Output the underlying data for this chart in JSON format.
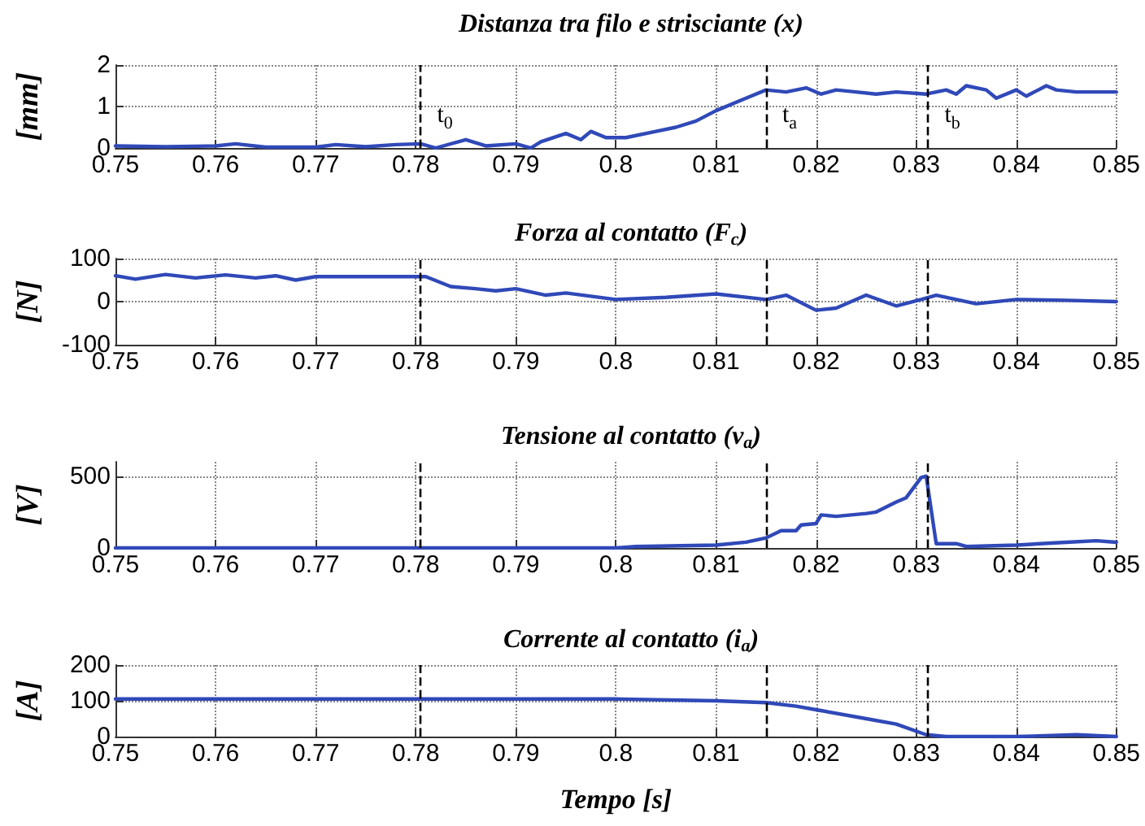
{
  "chart_data": [
    {
      "type": "line",
      "title": "Distanza tra filo e strisciante (x)",
      "ylabel": "[mm]",
      "grid": true,
      "marker": "none",
      "line_style": "solid",
      "xlim": [
        0.75,
        0.85
      ],
      "xticks": [
        0.75,
        0.76,
        0.77,
        0.78,
        0.79,
        0.8,
        0.81,
        0.82,
        0.83,
        0.84,
        0.85
      ],
      "ylim": [
        0,
        2
      ],
      "yticks": [
        0,
        1,
        2
      ],
      "x": [
        0.75,
        0.755,
        0.76,
        0.762,
        0.765,
        0.77,
        0.772,
        0.775,
        0.778,
        0.7805,
        0.782,
        0.785,
        0.787,
        0.79,
        0.7915,
        0.7925,
        0.795,
        0.7965,
        0.7975,
        0.799,
        0.801,
        0.804,
        0.806,
        0.808,
        0.81,
        0.813,
        0.815,
        0.817,
        0.819,
        0.8205,
        0.822,
        0.824,
        0.826,
        0.828,
        0.831,
        0.833,
        0.834,
        0.835,
        0.837,
        0.838,
        0.84,
        0.841,
        0.843,
        0.844,
        0.846,
        0.85
      ],
      "series": [
        {
          "color": "#3049b8",
          "values": [
            0.05,
            0.03,
            0.05,
            0.1,
            0.02,
            0.02,
            0.08,
            0.03,
            0.08,
            0.1,
            0,
            0.2,
            0.05,
            0.1,
            0,
            0.15,
            0.35,
            0.2,
            0.4,
            0.25,
            0.25,
            0.4,
            0.5,
            0.65,
            0.9,
            1.2,
            1.4,
            1.35,
            1.45,
            1.3,
            1.4,
            1.35,
            1.3,
            1.35,
            1.3,
            1.4,
            1.3,
            1.5,
            1.4,
            1.2,
            1.4,
            1.25,
            1.5,
            1.4,
            1.35,
            1.35
          ]
        }
      ],
      "ref_lines": [
        {
          "axis": "x",
          "value": 0.7805,
          "label": "t$_{0}$",
          "color": "#000000",
          "line_style": "dashed"
        },
        {
          "axis": "x",
          "value": 0.815,
          "label": "t$_{a}$",
          "color": "#000000",
          "line_style": "dashed"
        },
        {
          "axis": "x",
          "value": 0.8312,
          "label": "t$_{b}$",
          "color": "#000000",
          "line_style": "dashed"
        }
      ]
    },
    {
      "type": "line",
      "title": "Forza al contatto (F$_{c}$)",
      "ylabel": "[N]",
      "grid": true,
      "marker": "none",
      "line_style": "solid",
      "xlim": [
        0.75,
        0.85
      ],
      "xticks": [
        0.75,
        0.76,
        0.77,
        0.78,
        0.79,
        0.8,
        0.81,
        0.82,
        0.83,
        0.84,
        0.85
      ],
      "ylim": [
        -100,
        100
      ],
      "yticks": [
        -100,
        0,
        100
      ],
      "x": [
        0.75,
        0.752,
        0.755,
        0.758,
        0.761,
        0.764,
        0.766,
        0.768,
        0.77,
        0.775,
        0.78,
        0.781,
        0.7835,
        0.786,
        0.788,
        0.79,
        0.793,
        0.795,
        0.8,
        0.805,
        0.81,
        0.815,
        0.817,
        0.82,
        0.822,
        0.825,
        0.828,
        0.8305,
        0.832,
        0.836,
        0.84,
        0.845,
        0.85
      ],
      "series": [
        {
          "color": "#3049b8",
          "values": [
            60,
            52,
            63,
            55,
            62,
            55,
            60,
            50,
            58,
            58,
            58,
            58,
            35,
            30,
            25,
            30,
            15,
            20,
            5,
            10,
            18,
            5,
            15,
            -20,
            -15,
            15,
            -10,
            5,
            15,
            -5,
            5,
            3,
            0
          ]
        }
      ],
      "ref_lines": [
        {
          "axis": "x",
          "value": 0.7805,
          "color": "#000000",
          "line_style": "dashed"
        },
        {
          "axis": "x",
          "value": 0.815,
          "color": "#000000",
          "line_style": "dashed"
        },
        {
          "axis": "x",
          "value": 0.8312,
          "color": "#000000",
          "line_style": "dashed"
        }
      ]
    },
    {
      "type": "line",
      "title": "Tensione al contatto (v$_{a}$)",
      "ylabel": "[V]",
      "grid": true,
      "marker": "none",
      "line_style": "solid",
      "xlim": [
        0.75,
        0.85
      ],
      "xticks": [
        0.75,
        0.76,
        0.77,
        0.78,
        0.79,
        0.8,
        0.81,
        0.82,
        0.83,
        0.84,
        0.85
      ],
      "ylim": [
        0,
        600
      ],
      "yticks": [
        0,
        500
      ],
      "x": [
        0.75,
        0.8,
        0.802,
        0.81,
        0.813,
        0.815,
        0.8165,
        0.818,
        0.8185,
        0.82,
        0.8205,
        0.822,
        0.825,
        0.826,
        0.828,
        0.829,
        0.8305,
        0.831,
        0.832,
        0.834,
        0.835,
        0.84,
        0.845,
        0.848,
        0.85
      ],
      "series": [
        {
          "color": "#3049b8",
          "values": [
            0,
            0,
            10,
            20,
            40,
            70,
            120,
            120,
            160,
            170,
            230,
            220,
            240,
            250,
            320,
            350,
            490,
            500,
            30,
            30,
            10,
            20,
            40,
            50,
            40
          ]
        }
      ],
      "ref_lines": [
        {
          "axis": "x",
          "value": 0.7805,
          "color": "#000000",
          "line_style": "dashed"
        },
        {
          "axis": "x",
          "value": 0.815,
          "color": "#000000",
          "line_style": "dashed"
        },
        {
          "axis": "x",
          "value": 0.8312,
          "color": "#000000",
          "line_style": "dashed"
        }
      ]
    },
    {
      "type": "line",
      "title": "Corrente al contatto (i$_{a}$)",
      "xlabel": "Tempo [s]",
      "ylabel": "[A]",
      "grid": true,
      "marker": "none",
      "line_style": "solid",
      "xlim": [
        0.75,
        0.85
      ],
      "xticks": [
        0.75,
        0.76,
        0.77,
        0.78,
        0.79,
        0.8,
        0.81,
        0.82,
        0.83,
        0.84,
        0.85
      ],
      "ylim": [
        0,
        200
      ],
      "yticks": [
        0,
        100,
        200
      ],
      "x": [
        0.75,
        0.8,
        0.81,
        0.815,
        0.818,
        0.82,
        0.825,
        0.828,
        0.831,
        0.833,
        0.84,
        0.846,
        0.85
      ],
      "series": [
        {
          "color": "#3049b8",
          "values": [
            105,
            105,
            100,
            95,
            85,
            75,
            50,
            35,
            5,
            0,
            0,
            5,
            0
          ]
        }
      ],
      "ref_lines": [
        {
          "axis": "x",
          "value": 0.7805,
          "color": "#000000",
          "line_style": "dashed"
        },
        {
          "axis": "x",
          "value": 0.815,
          "color": "#000000",
          "line_style": "dashed"
        },
        {
          "axis": "x",
          "value": 0.8312,
          "color": "#000000",
          "line_style": "dashed"
        }
      ]
    }
  ]
}
